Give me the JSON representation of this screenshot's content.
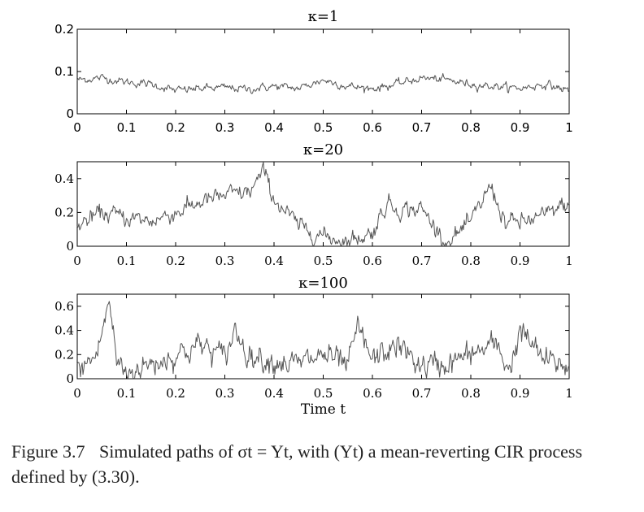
{
  "chart_data": [
    {
      "type": "line",
      "title": "κ=1",
      "kappa": 1,
      "xlim": [
        0,
        1
      ],
      "ylim": [
        0,
        0.2
      ],
      "xticks": [
        "0",
        "0.1",
        "0.2",
        "0.3",
        "0.4",
        "0.5",
        "0.6",
        "0.7",
        "0.8",
        "0.9",
        "1"
      ],
      "yticks": [
        "0",
        "0.1",
        "0.2"
      ],
      "xlabel": "",
      "series": [
        {
          "name": "κ=1",
          "x": [
            0,
            0.05,
            0.1,
            0.15,
            0.2,
            0.25,
            0.3,
            0.35,
            0.4,
            0.45,
            0.5,
            0.55,
            0.6,
            0.65,
            0.7,
            0.75,
            0.8,
            0.85,
            0.9,
            0.95,
            1
          ],
          "y": [
            0.08,
            0.085,
            0.075,
            0.07,
            0.055,
            0.06,
            0.062,
            0.058,
            0.065,
            0.06,
            0.08,
            0.065,
            0.06,
            0.07,
            0.085,
            0.08,
            0.07,
            0.065,
            0.06,
            0.07,
            0.055
          ]
        }
      ]
    },
    {
      "type": "line",
      "title": "κ=20",
      "kappa": 20,
      "xlim": [
        0,
        1
      ],
      "ylim": [
        0,
        0.5
      ],
      "xticks": [
        "0",
        "0.1",
        "0.2",
        "0.3",
        "0.4",
        "0.5",
        "0.6",
        "0.7",
        "0.8",
        "0.9",
        "1"
      ],
      "yticks": [
        "0",
        "0.2",
        "0.4"
      ],
      "xlabel": "",
      "series": [
        {
          "name": "κ=20",
          "x": [
            0,
            0.05,
            0.1,
            0.15,
            0.2,
            0.25,
            0.3,
            0.35,
            0.38,
            0.4,
            0.45,
            0.5,
            0.55,
            0.6,
            0.63,
            0.65,
            0.7,
            0.75,
            0.8,
            0.84,
            0.87,
            0.9,
            0.95,
            1
          ],
          "y": [
            0.12,
            0.2,
            0.17,
            0.15,
            0.2,
            0.26,
            0.3,
            0.32,
            0.44,
            0.28,
            0.12,
            0.06,
            0.03,
            0.08,
            0.26,
            0.22,
            0.22,
            0.02,
            0.14,
            0.36,
            0.14,
            0.14,
            0.18,
            0.26
          ]
        }
      ]
    },
    {
      "type": "line",
      "title": "κ=100",
      "kappa": 100,
      "xlim": [
        0,
        1
      ],
      "ylim": [
        0,
        0.7
      ],
      "xticks": [
        "0",
        "0.1",
        "0.2",
        "0.3",
        "0.4",
        "0.5",
        "0.6",
        "0.7",
        "0.8",
        "0.9",
        "1"
      ],
      "yticks": [
        "0",
        "0.2",
        "0.4",
        "0.6"
      ],
      "xlabel": "Time t",
      "series": [
        {
          "name": "κ=100",
          "x": [
            0,
            0.04,
            0.065,
            0.08,
            0.1,
            0.15,
            0.2,
            0.25,
            0.3,
            0.32,
            0.35,
            0.4,
            0.45,
            0.5,
            0.55,
            0.57,
            0.6,
            0.65,
            0.7,
            0.75,
            0.8,
            0.85,
            0.88,
            0.9,
            0.95,
            1
          ],
          "y": [
            0.05,
            0.2,
            0.65,
            0.15,
            0.05,
            0.12,
            0.2,
            0.28,
            0.18,
            0.4,
            0.2,
            0.15,
            0.12,
            0.2,
            0.1,
            0.42,
            0.15,
            0.28,
            0.1,
            0.12,
            0.2,
            0.28,
            0.08,
            0.4,
            0.15,
            0.1
          ]
        }
      ]
    }
  ],
  "caption": {
    "number": "Figure 3.7",
    "text": "Simulated paths of σt = Yt, with (Yt) a mean-reverting CIR process defined by (3.30)."
  },
  "colors": {
    "line": "#555555",
    "axis": "#000000"
  }
}
